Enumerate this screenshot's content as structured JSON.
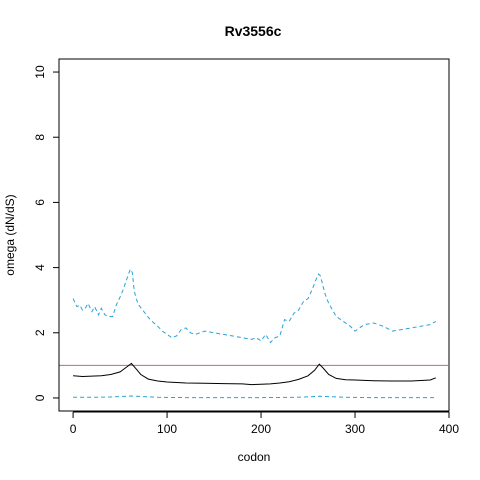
{
  "chart_data": {
    "type": "line",
    "title": "Rv3556c",
    "xlabel": "codon",
    "ylabel": "omega (dN/dS)",
    "xlim": [
      -15,
      400
    ],
    "ylim": [
      -0.4,
      10.4
    ],
    "xticks": [
      0,
      100,
      200,
      300,
      400
    ],
    "yticks": [
      0,
      2,
      4,
      6,
      8,
      10
    ],
    "grid": false,
    "reference_line": {
      "y": 1,
      "color": "#c060a0"
    },
    "series": [
      {
        "style": "solid",
        "color": "#000000",
        "x": [
          0,
          10,
          20,
          30,
          40,
          50,
          57,
          62,
          66,
          72,
          80,
          90,
          100,
          120,
          140,
          160,
          180,
          190,
          200,
          210,
          220,
          230,
          240,
          250,
          257,
          262,
          266,
          272,
          280,
          290,
          300,
          320,
          340,
          360,
          380,
          386
        ],
        "y": [
          0.68,
          0.66,
          0.67,
          0.68,
          0.72,
          0.8,
          0.95,
          1.06,
          0.93,
          0.72,
          0.58,
          0.52,
          0.49,
          0.46,
          0.45,
          0.44,
          0.43,
          0.41,
          0.42,
          0.43,
          0.46,
          0.5,
          0.57,
          0.68,
          0.85,
          1.04,
          0.92,
          0.72,
          0.6,
          0.56,
          0.55,
          0.53,
          0.52,
          0.52,
          0.55,
          0.62
        ]
      },
      {
        "style": "dashed",
        "color": "#29a3d6",
        "x": [
          0,
          4,
          7,
          10,
          13,
          16,
          20,
          23,
          27,
          30,
          34,
          38,
          42,
          46,
          50,
          53,
          56,
          59,
          61,
          63,
          65,
          67,
          70,
          74,
          78,
          82,
          86,
          90,
          95,
          100,
          105,
          110,
          115,
          120,
          125,
          130,
          140,
          150,
          160,
          170,
          180,
          190,
          195,
          200,
          205,
          210,
          215,
          220,
          225,
          230,
          235,
          240,
          245,
          250,
          254,
          258,
          261,
          263,
          265,
          268,
          272,
          276,
          280,
          285,
          290,
          295,
          300,
          310,
          320,
          330,
          340,
          350,
          360,
          370,
          380,
          386
        ],
        "y": [
          3.05,
          2.8,
          2.85,
          2.7,
          2.75,
          2.9,
          2.65,
          2.8,
          2.55,
          2.75,
          2.55,
          2.5,
          2.5,
          2.85,
          3.1,
          3.3,
          3.55,
          3.8,
          3.95,
          3.85,
          3.3,
          3.05,
          2.85,
          2.7,
          2.55,
          2.4,
          2.3,
          2.2,
          2.05,
          1.95,
          1.85,
          1.9,
          2.1,
          2.15,
          2.0,
          1.95,
          2.05,
          2.0,
          1.95,
          1.9,
          1.85,
          1.8,
          1.85,
          1.75,
          1.95,
          1.7,
          1.85,
          1.9,
          2.4,
          2.35,
          2.6,
          2.7,
          2.95,
          3.05,
          3.3,
          3.6,
          3.8,
          3.75,
          3.55,
          3.2,
          2.9,
          2.7,
          2.5,
          2.4,
          2.3,
          2.2,
          2.05,
          2.25,
          2.3,
          2.2,
          2.05,
          2.1,
          2.15,
          2.2,
          2.25,
          2.35
        ]
      },
      {
        "style": "dashed",
        "color": "#29a3d6",
        "x": [
          0,
          20,
          40,
          62,
          90,
          120,
          160,
          200,
          240,
          262,
          290,
          320,
          360,
          386
        ],
        "y": [
          0.02,
          0.02,
          0.03,
          0.06,
          0.02,
          0.01,
          0.01,
          0.01,
          0.02,
          0.05,
          0.02,
          0.01,
          0.01,
          0.01
        ]
      }
    ]
  }
}
